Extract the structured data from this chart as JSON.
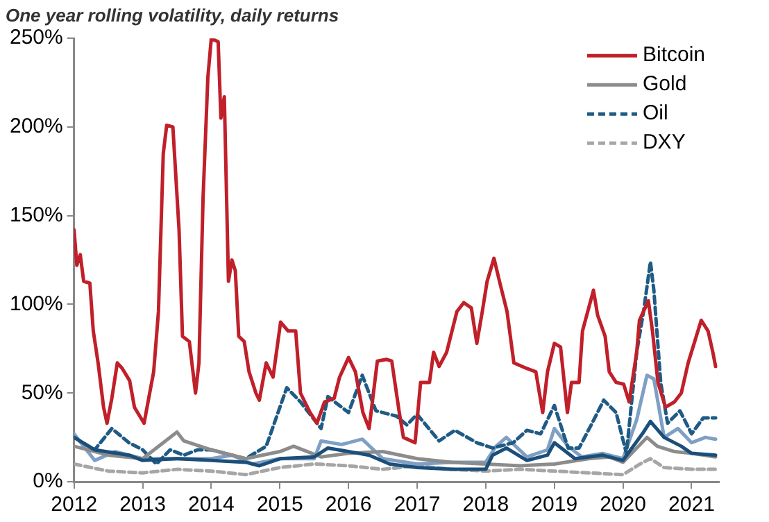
{
  "chart_data": {
    "type": "line",
    "title": "One year rolling volatility, daily returns",
    "legend": "top right",
    "grid": false,
    "marker": "none",
    "xlim": [
      2012,
      2021.4
    ],
    "xticks": [
      2012,
      2013,
      2014,
      2015,
      2016,
      2017,
      2018,
      2019,
      2020,
      2021
    ],
    "ylim": [
      0,
      250
    ],
    "yticks": [
      {
        "value": 0,
        "label": "0%"
      },
      {
        "value": 50,
        "label": "50%"
      },
      {
        "value": 100,
        "label": "100%"
      },
      {
        "value": 150,
        "label": "150%"
      },
      {
        "value": 200,
        "label": "200%"
      },
      {
        "value": 250,
        "label": "250%"
      }
    ],
    "series": [
      {
        "name": "Bitcoin",
        "color": "#c0202a",
        "line_style": "solid",
        "x": [
          2012.0,
          2012.04,
          2012.09,
          2012.14,
          2012.23,
          2012.28,
          2012.35,
          2012.43,
          2012.48,
          2012.55,
          2012.63,
          2012.7,
          2012.81,
          2012.88,
          2013.02,
          2013.16,
          2013.23,
          2013.3,
          2013.35,
          2013.44,
          2013.53,
          2013.58,
          2013.68,
          2013.77,
          2013.82,
          2013.88,
          2013.95,
          2014.0,
          2014.1,
          2014.14,
          2014.19,
          2014.25,
          2014.3,
          2014.35,
          2014.4,
          2014.48,
          2014.55,
          2014.65,
          2014.7,
          2014.8,
          2014.9,
          2015.01,
          2015.12,
          2015.23,
          2015.3,
          2015.44,
          2015.54,
          2015.65,
          2015.79,
          2015.87,
          2016.0,
          2016.1,
          2016.21,
          2016.3,
          2016.42,
          2016.55,
          2016.63,
          2016.74,
          2016.8,
          2016.97,
          2017.05,
          2017.18,
          2017.24,
          2017.32,
          2017.43,
          2017.58,
          2017.68,
          2017.79,
          2017.87,
          2017.95,
          2018.02,
          2018.12,
          2018.2,
          2018.31,
          2018.41,
          2018.59,
          2018.73,
          2018.83,
          2018.9,
          2019.0,
          2019.09,
          2019.19,
          2019.25,
          2019.36,
          2019.41,
          2019.57,
          2019.63,
          2019.74,
          2019.8,
          2019.9,
          2020.01,
          2020.09,
          2020.2,
          2020.24,
          2020.37,
          2020.43,
          2020.51,
          2020.62,
          2020.75,
          2020.85,
          2020.95,
          2021.14,
          2021.24,
          2021.31,
          2021.35
        ],
        "values": [
          142,
          122,
          128,
          113,
          112,
          85,
          67,
          42,
          33,
          47,
          67,
          64,
          57,
          42,
          33,
          62,
          96,
          185,
          201,
          200,
          142,
          82,
          79,
          50,
          67,
          160,
          228,
          250,
          248,
          205,
          217,
          113,
          125,
          119,
          82,
          79,
          62,
          50,
          46,
          67,
          59,
          90,
          85,
          85,
          50,
          39,
          33,
          45,
          47,
          59,
          70,
          62,
          39,
          30,
          68,
          69,
          68,
          39,
          25,
          22,
          56,
          56,
          73,
          65,
          73,
          96,
          101,
          98,
          78,
          96,
          113,
          126,
          113,
          96,
          67,
          64,
          62,
          39,
          62,
          78,
          76,
          39,
          56,
          56,
          85,
          108,
          94,
          82,
          62,
          56,
          55,
          45,
          73,
          91,
          102,
          85,
          56,
          42,
          45,
          50,
          67,
          91,
          85,
          73,
          65
        ]
      },
      {
        "color": "#1b4f7a",
        "line_style": "solid",
        "x": [
          2012,
          2012.3,
          2012.8,
          2013,
          2013.5,
          2014,
          2014.5,
          2014.7,
          2015,
          2015.5,
          2015.7,
          2016,
          2016.3,
          2016.6,
          2017,
          2017.5,
          2018,
          2018.1,
          2018.3,
          2018.6,
          2018.9,
          2019,
          2019.3,
          2019.7,
          2020,
          2020.3,
          2020.4,
          2020.6,
          2020.85,
          2021,
          2021.35
        ],
        "values": [
          25,
          18,
          15,
          12,
          13,
          12,
          11,
          9,
          13,
          14,
          19,
          17,
          15,
          10,
          8,
          7,
          7,
          15,
          19,
          12,
          15,
          22,
          13,
          15,
          12,
          28,
          34,
          25,
          20,
          16,
          15
        ]
      },
      {
        "name": "Gold",
        "color": "#8c8c8c",
        "line_style": "solid",
        "x": [
          2012,
          2012.5,
          2013,
          2013.3,
          2013.5,
          2013.6,
          2014,
          2014.5,
          2015,
          2015.2,
          2015.6,
          2016,
          2016.5,
          2017,
          2017.5,
          2018,
          2018.5,
          2019,
          2019.5,
          2019.8,
          2020,
          2020.35,
          2020.5,
          2020.75,
          2021,
          2021.35
        ],
        "values": [
          20,
          15,
          13,
          22,
          28,
          23,
          18,
          13,
          17,
          20,
          14,
          16,
          17,
          13,
          11,
          10,
          9,
          10,
          13,
          14,
          11,
          25,
          20,
          17,
          16,
          14
        ]
      },
      {
        "name": "Oil",
        "color": "#1f5b84",
        "line_style": "dashed",
        "x": [
          2012,
          2012.3,
          2012.55,
          2012.8,
          2013,
          2013.2,
          2013.4,
          2013.6,
          2013.8,
          2014,
          2014.5,
          2014.8,
          2015.1,
          2015.3,
          2015.6,
          2015.7,
          2016,
          2016.2,
          2016.4,
          2016.7,
          2016.85,
          2017,
          2017.32,
          2017.55,
          2017.87,
          2018.1,
          2018.4,
          2018.6,
          2018.8,
          2019,
          2019.2,
          2019.36,
          2019.55,
          2019.72,
          2019.9,
          2020.05,
          2020.2,
          2020.3,
          2020.4,
          2020.45,
          2020.55,
          2020.65,
          2020.83,
          2021,
          2021.17,
          2021.35
        ],
        "values": [
          25,
          18,
          30,
          22,
          18,
          10,
          18,
          15,
          18,
          18,
          13,
          20,
          53,
          45,
          30,
          48,
          39,
          60,
          40,
          37,
          32,
          38,
          23,
          29,
          22,
          19,
          22,
          29,
          27,
          43,
          19,
          19,
          33,
          46,
          39,
          16,
          73,
          96,
          124,
          108,
          56,
          33,
          40,
          27,
          36,
          36
        ]
      },
      {
        "color": "#7f9fc4",
        "line_style": "solid",
        "x": [
          2012,
          2012.3,
          2012.6,
          2013,
          2013.5,
          2014,
          2014.3,
          2014.6,
          2015,
          2015.5,
          2015.6,
          2015.9,
          2016.2,
          2016.5,
          2017,
          2017.5,
          2018,
          2018.15,
          2018.3,
          2018.6,
          2018.9,
          2019,
          2019.2,
          2019.4,
          2019.7,
          2020,
          2020.2,
          2020.35,
          2020.45,
          2020.6,
          2020.8,
          2021,
          2021.2,
          2021.35
        ],
        "values": [
          27,
          12,
          17,
          13,
          13,
          13,
          15,
          10,
          13,
          13,
          23,
          21,
          24,
          13,
          10,
          11,
          11,
          20,
          25,
          14,
          18,
          30,
          20,
          14,
          16,
          13,
          35,
          60,
          58,
          25,
          30,
          22,
          25,
          24
        ]
      },
      {
        "name": "DXY",
        "color": "#a6a6a6",
        "line_style": "dashed",
        "x": [
          2012,
          2012.5,
          2013,
          2013.5,
          2014,
          2014.5,
          2015,
          2015.5,
          2016,
          2016.5,
          2017,
          2017.5,
          2018,
          2018.5,
          2019,
          2019.5,
          2020,
          2020.25,
          2020.4,
          2020.6,
          2021,
          2021.35
        ],
        "values": [
          10,
          6,
          5,
          7,
          6,
          4,
          8,
          10,
          9,
          7,
          9,
          7,
          6,
          7,
          6,
          5,
          4,
          10,
          13,
          8,
          7,
          7
        ]
      }
    ]
  }
}
